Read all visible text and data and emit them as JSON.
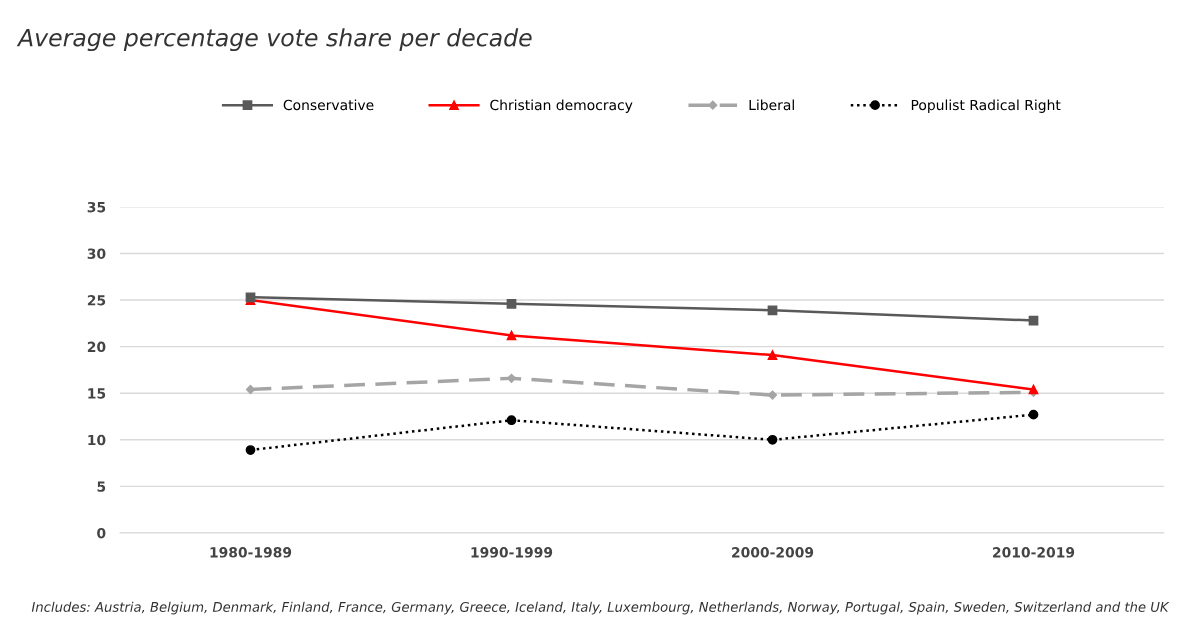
{
  "chart_data": {
    "type": "line",
    "title": "Average percentage vote share per decade",
    "categories": [
      "1980-1989",
      "1990-1999",
      "2000-2009",
      "2010-2019"
    ],
    "series": [
      {
        "name": "Conservative",
        "color": "#595959",
        "marker": "square",
        "line_style": "solid",
        "values": [
          25.3,
          24.6,
          23.9,
          22.8
        ]
      },
      {
        "name": "Christian democracy",
        "color": "#ff0000",
        "marker": "triangle",
        "line_style": "solid",
        "values": [
          25.0,
          21.2,
          19.1,
          15.4
        ]
      },
      {
        "name": "Liberal",
        "color": "#a5a5a5",
        "marker": "diamond",
        "line_style": "dashed",
        "values": [
          15.4,
          16.6,
          14.8,
          15.1
        ]
      },
      {
        "name": "Populist Radical Right",
        "color": "#000000",
        "marker": "circle",
        "line_style": "dotted",
        "values": [
          8.9,
          12.1,
          10.0,
          12.7
        ]
      }
    ],
    "ylim": [
      0,
      35
    ],
    "yticks": [
      0,
      5,
      10,
      15,
      20,
      25,
      30,
      35
    ],
    "grid": "y",
    "legend": "top",
    "annotations": [
      "Includes: Austria, Belgium, Denmark, Finland, France, Germany, Greece, Iceland, Italy, Luxembourg, Netherlands, Norway, Portugal, Spain, Sweden, Switzerland and the UK"
    ]
  }
}
